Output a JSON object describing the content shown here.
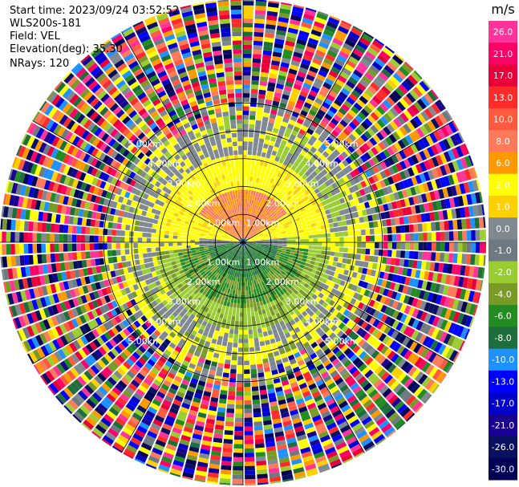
{
  "header": {
    "start_time": "Start time: 2023/09/24 03:52:52",
    "instrument": "WLS200s-181",
    "field": "Field: VEL",
    "elevation": "Elevation(deg): 35.30",
    "nrays": "NRays: 120"
  },
  "chart_data": {
    "type": "heatmap",
    "projection": "polar-ppi",
    "center_marker": "+",
    "grid": true,
    "range_rings_km": [
      1.0,
      2.0,
      3.0,
      4.0,
      5.0
    ],
    "range_ring_labels": [
      "1.00km",
      "2.00km",
      "3.00km",
      "4.00km",
      "5.00km"
    ],
    "spokes_deg": [
      0,
      30,
      60,
      90,
      120,
      150,
      180,
      210,
      240,
      270,
      300,
      330
    ],
    "n_rays": 120,
    "max_range_km": 7.2,
    "field_description": "Radial velocity: gray near zero around range 1-1.3 km band, orange/red (+8 to +13 m/s) north of radar within ~1.5 km, yellow (+2 m/s) ring 1.5-3.5 km in north half, light and dark green (-2 to -6 m/s) south of radar within ~2.5 km, noisy multicolor beyond ~4 km",
    "colorbar": {
      "unit": "m/s",
      "ticks": [
        "26.0",
        "21.0",
        "17.0",
        "13.0",
        "10.0",
        "8.0",
        "6.0",
        "2.0",
        "1.0",
        "0.0",
        "-1.0",
        "-2.0",
        "-4.0",
        "-6.0",
        "-8.0",
        "-10.0",
        "-13.0",
        "-17.0",
        "-21.0",
        "-26.0",
        "-30.0"
      ],
      "colors": [
        "#ff3399",
        "#ff0066",
        "#e8003a",
        "#ff2a2a",
        "#ff5a40",
        "#ff7a5a",
        "#ff9900",
        "#ffff00",
        "#ffd000",
        "#808890",
        "#6e7a82",
        "#9acd32",
        "#7a9a28",
        "#228b22",
        "#1e6e3c",
        "#1e90ff",
        "#0000ff",
        "#0000cc",
        "#1a0090",
        "#0a1060",
        "#000055"
      ]
    }
  }
}
